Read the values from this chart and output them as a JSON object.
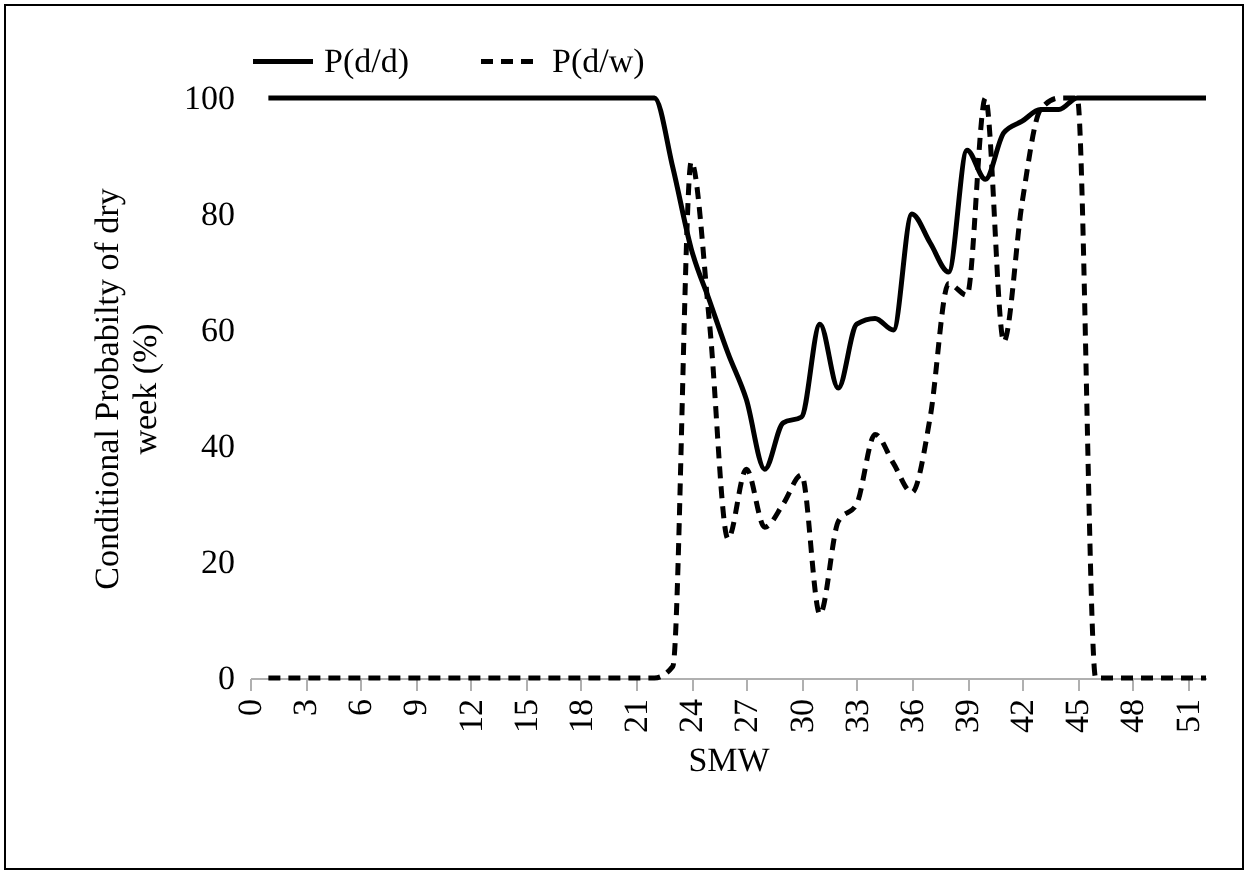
{
  "chart_data": {
    "type": "line",
    "xlabel": "SMW",
    "ylabel": "Conditional Probabilty of dry week (%)",
    "x": [
      1,
      2,
      3,
      4,
      5,
      6,
      7,
      8,
      9,
      10,
      11,
      12,
      13,
      14,
      15,
      16,
      17,
      18,
      19,
      20,
      21,
      22,
      23,
      24,
      25,
      26,
      27,
      28,
      29,
      30,
      31,
      32,
      33,
      34,
      35,
      36,
      37,
      38,
      39,
      40,
      41,
      42,
      43,
      44,
      45,
      46,
      47,
      48,
      49,
      50,
      51,
      52
    ],
    "series": [
      {
        "name": "P(d/d)",
        "color": "#000000",
        "line_style": "solid",
        "values": [
          100,
          100,
          100,
          100,
          100,
          100,
          100,
          100,
          100,
          100,
          100,
          100,
          100,
          100,
          100,
          100,
          100,
          100,
          100,
          100,
          100,
          100,
          88,
          74,
          65,
          56,
          48,
          36,
          44,
          45,
          61,
          50,
          61,
          62,
          60,
          80,
          75,
          70,
          91,
          86,
          94,
          96,
          98,
          98,
          100,
          100,
          100,
          100,
          100,
          100,
          100,
          100
        ]
      },
      {
        "name": "P(d/w)",
        "color": "#000000",
        "line_style": "dashed",
        "values": [
          0,
          0,
          0,
          0,
          0,
          0,
          0,
          0,
          0,
          0,
          0,
          0,
          0,
          0,
          0,
          0,
          0,
          0,
          0,
          0,
          0,
          0,
          2,
          89,
          61,
          24,
          36,
          26,
          30,
          35,
          11,
          27,
          30,
          42,
          37,
          32,
          45,
          68,
          66,
          100,
          58,
          82,
          98,
          100,
          100,
          0,
          0,
          0,
          0,
          0,
          0,
          0
        ]
      }
    ],
    "xlim": [
      0,
      52
    ],
    "xticks": [
      0,
      3,
      6,
      9,
      12,
      15,
      18,
      21,
      24,
      27,
      30,
      33,
      36,
      39,
      42,
      45,
      48,
      51
    ],
    "ylim": [
      0,
      100
    ],
    "yticks": [
      0,
      20,
      40,
      60,
      80,
      100
    ],
    "grid": false,
    "legend": "top",
    "marker": "none"
  }
}
